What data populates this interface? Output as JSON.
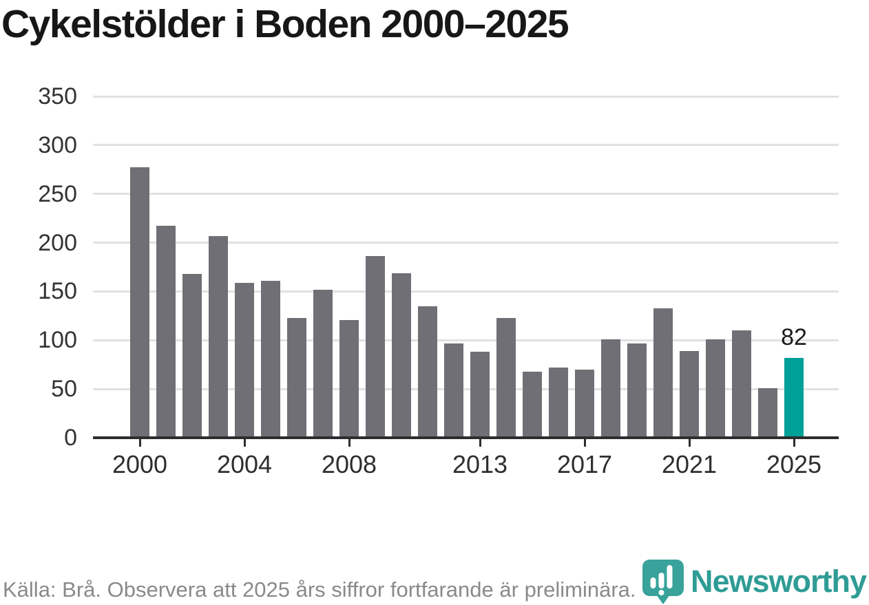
{
  "title": "Cykelstölder i Boden 2000–2025",
  "footer": {
    "source_note": "Källa: Brå. Observera att 2025 års siffror fortfarande är preliminära."
  },
  "branding": {
    "name": "Newsworthy",
    "icon": "newsworthy-pin-chart-icon"
  },
  "colors": {
    "bar": "#716f76",
    "highlight": "#00a099",
    "grid": "#e1e1e1",
    "axis": "#2d2d2d",
    "y_label": "#333333",
    "x_label": "#2e2e2e",
    "title": "#171717",
    "annotation": "#1b1b1b",
    "footer_text": "#8a8a8a",
    "logo_pin": "#38a29b",
    "logo_text": "#2f9c95"
  },
  "chart_data": {
    "type": "bar",
    "title": "Cykelstölder i Boden 2000–2025",
    "xlabel": "",
    "ylabel": "",
    "categories": [
      "2000",
      "2001",
      "2002",
      "2003",
      "2004",
      "2005",
      "2006",
      "2007",
      "2008",
      "2009",
      "2010",
      "2011",
      "2012",
      "2013",
      "2014",
      "2015",
      "2016",
      "2017",
      "2018",
      "2019",
      "2020",
      "2021",
      "2022",
      "2023",
      "2024",
      "2025"
    ],
    "values": [
      277,
      217,
      168,
      207,
      159,
      161,
      123,
      152,
      121,
      186,
      169,
      135,
      97,
      88,
      123,
      68,
      72,
      70,
      101,
      97,
      133,
      89,
      101,
      110,
      51,
      82
    ],
    "highlight_index": 25,
    "highlight_label": "82",
    "ylim": [
      0,
      350
    ],
    "y_ticks": [
      0,
      50,
      100,
      150,
      200,
      250,
      300,
      350
    ],
    "x_ticks": [
      {
        "index": 0,
        "label": "2000"
      },
      {
        "index": 4,
        "label": "2004"
      },
      {
        "index": 8,
        "label": "2008"
      },
      {
        "index": 13,
        "label": "2013"
      },
      {
        "index": 17,
        "label": "2017"
      },
      {
        "index": 21,
        "label": "2021"
      },
      {
        "index": 25,
        "label": "2025"
      }
    ],
    "grid": true,
    "legend": false,
    "annotations": [
      {
        "index": 25,
        "text": "82"
      }
    ]
  }
}
